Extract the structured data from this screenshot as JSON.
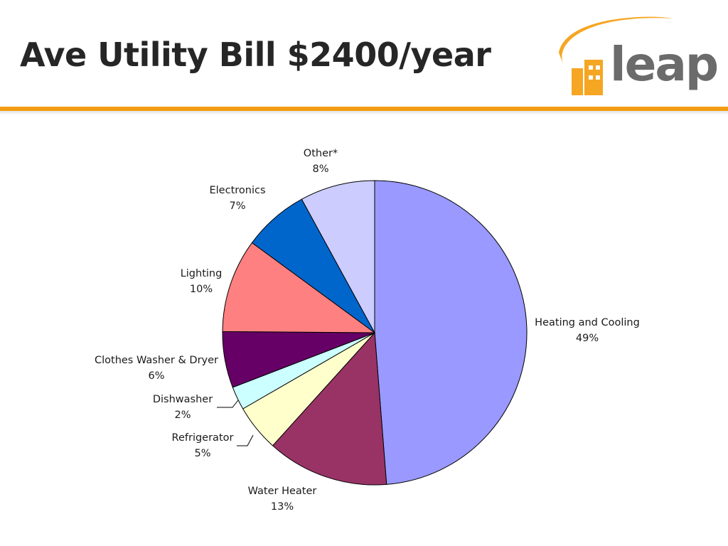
{
  "slide": {
    "title": "Ave Utility Bill $2400/year",
    "logo_text": "leap"
  },
  "colors": {
    "accent_rule": "#f39c12",
    "logo_orange": "#f5a623",
    "logo_gray": "#6b6b6b"
  },
  "chart_data": {
    "type": "pie",
    "start_angle_deg": 0,
    "direction": "clockwise",
    "slices": [
      {
        "label": "Heating and Cooling",
        "pct_label": "49%",
        "value": 49,
        "color": "#9999ff"
      },
      {
        "label": "Water Heater",
        "pct_label": "13%",
        "value": 13,
        "color": "#993366"
      },
      {
        "label": "Refrigerator",
        "pct_label": "5%",
        "value": 5,
        "color": "#ffffcc"
      },
      {
        "label": "Dishwasher",
        "pct_label": "2%",
        "value": 2.5,
        "color": "#ccffff"
      },
      {
        "label": "Clothes Washer & Dryer",
        "pct_label": "6%",
        "value": 6,
        "color": "#660066"
      },
      {
        "label": "Lighting",
        "pct_label": "10%",
        "value": 10,
        "color": "#ff8080"
      },
      {
        "label": "Electronics",
        "pct_label": "7%",
        "value": 7,
        "color": "#0066cc"
      },
      {
        "label": "Other*",
        "pct_label": "8%",
        "value": 8,
        "color": "#ccccff"
      }
    ]
  }
}
